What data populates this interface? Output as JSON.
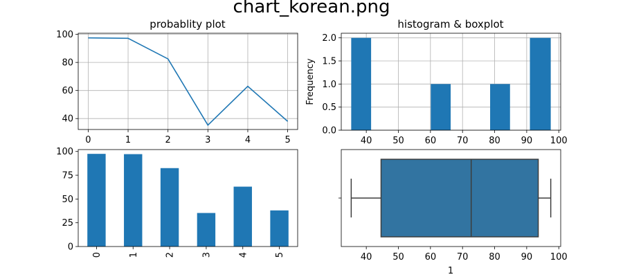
{
  "figure": {
    "suptitle": "chart_korean.png"
  },
  "chart_data": [
    {
      "id": "line",
      "type": "line",
      "title": "probablity plot",
      "x": [
        0,
        1,
        2,
        3,
        4,
        5
      ],
      "values": [
        97.5,
        97.2,
        82.5,
        35.3,
        63.0,
        38.0
      ],
      "xlim": [
        -0.25,
        5.25
      ],
      "ylim": [
        32.2,
        100.8
      ],
      "xticks": [
        "0",
        "1",
        "2",
        "3",
        "4",
        "5"
      ],
      "yticks": [
        "40",
        "60",
        "80",
        "100"
      ],
      "grid": true,
      "color": "#1f77b4"
    },
    {
      "id": "hist",
      "type": "bar",
      "title": "histogram & boxplot",
      "ylabel": "Frequency",
      "bins": [
        {
          "x0": 35.3,
          "x1": 41.5,
          "count": 2
        },
        {
          "x0": 60.1,
          "x1": 66.3,
          "count": 1
        },
        {
          "x0": 78.6,
          "x1": 84.8,
          "count": 1
        },
        {
          "x0": 91.0,
          "x1": 97.5,
          "count": 2
        }
      ],
      "xlim": [
        32.2,
        100.6
      ],
      "ylim": [
        0,
        2.1
      ],
      "xticks": [
        "40",
        "50",
        "60",
        "70",
        "80",
        "90",
        "100"
      ],
      "yticks": [
        "0.0",
        "0.5",
        "1.0",
        "1.5",
        "2.0"
      ],
      "grid": true,
      "color": "#1f77b4"
    },
    {
      "id": "bar",
      "type": "bar",
      "categories": [
        "0",
        "1",
        "2",
        "3",
        "4",
        "5"
      ],
      "values": [
        97.5,
        97.2,
        82.5,
        35.3,
        63.0,
        38.0
      ],
      "ylim": [
        0,
        102
      ],
      "yticks": [
        "0",
        "25",
        "50",
        "75",
        "100"
      ],
      "grid": false,
      "color": "#1f77b4"
    },
    {
      "id": "box",
      "type": "boxplot",
      "xlabel": "1",
      "stats": {
        "min": 35.3,
        "q1": 44.6,
        "median": 72.7,
        "q3": 93.6,
        "max": 97.5
      },
      "xlim": [
        32.2,
        100.6
      ],
      "xticks": [
        "40",
        "50",
        "60",
        "70",
        "80",
        "90",
        "100"
      ],
      "grid": false,
      "color": "#3274a1"
    }
  ]
}
